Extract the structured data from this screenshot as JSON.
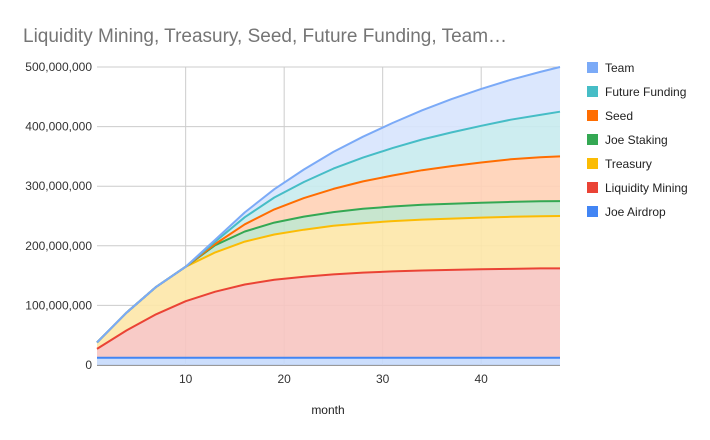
{
  "chart_data": {
    "type": "area",
    "stacked": true,
    "title": "Liquidity Mining, Treasury, Seed, Future Funding, Team…",
    "xlabel": "month",
    "ylabel": "",
    "xlim": [
      1,
      48
    ],
    "ylim": [
      0,
      500000000
    ],
    "x_ticks": [
      10,
      20,
      30,
      40
    ],
    "y_ticks": [
      0,
      100000000,
      200000000,
      300000000,
      400000000,
      500000000
    ],
    "y_tick_labels": [
      "0",
      "100,000,000",
      "200,000,000",
      "300,000,000",
      "400,000,000",
      "500,000,000"
    ],
    "grid": true,
    "legend_position": "right",
    "x": [
      1,
      4,
      7,
      10,
      13,
      16,
      19,
      22,
      25,
      28,
      31,
      34,
      37,
      40,
      43,
      46,
      48
    ],
    "series": [
      {
        "name": "Joe Airdrop",
        "color": "#4285f4",
        "fill": "#c6dafc",
        "values": [
          12000000,
          12000000,
          12000000,
          12000000,
          12000000,
          12000000,
          12000000,
          12000000,
          12000000,
          12000000,
          12000000,
          12000000,
          12000000,
          12000000,
          12000000,
          12000000,
          12000000
        ]
      },
      {
        "name": "Liquidity Mining",
        "color": "#ea4335",
        "fill": "#f7c5c1",
        "values": [
          15000000,
          46000000,
          73000000,
          95000000,
          111000000,
          123000000,
          131000000,
          136000000,
          140000000,
          143000000,
          145000000,
          146500000,
          147500000,
          148500000,
          149300000,
          150000000,
          150000000
        ]
      },
      {
        "name": "Treasury",
        "color": "#fbbc04",
        "fill": "#fde7a8",
        "values": [
          11000000,
          30000000,
          46000000,
          58000000,
          66000000,
          72000000,
          76000000,
          79000000,
          81500000,
          83000000,
          84500000,
          85500000,
          86200000,
          86800000,
          87300000,
          87700000,
          88000000
        ]
      },
      {
        "name": "Joe Staking",
        "color": "#34a853",
        "fill": "#c2e3ca",
        "values": [
          0,
          0,
          0,
          0,
          12000000,
          17000000,
          20000000,
          22000000,
          23000000,
          24000000,
          24500000,
          24800000,
          25000000,
          25000000,
          25000000,
          25000000,
          25000000
        ]
      },
      {
        "name": "Seed",
        "color": "#ff6d01",
        "fill": "#ffd2b6",
        "values": [
          0,
          0,
          0,
          0,
          2000000,
          12000000,
          22000000,
          31000000,
          39000000,
          46000000,
          52000000,
          58000000,
          63000000,
          67500000,
          71500000,
          74000000,
          75000000
        ]
      },
      {
        "name": "Future Funding",
        "color": "#46bdc6",
        "fill": "#c8ebee",
        "values": [
          0,
          0,
          0,
          0,
          4000000,
          12000000,
          20000000,
          27000000,
          34000000,
          40000000,
          46000000,
          51500000,
          56500000,
          61500000,
          66500000,
          71000000,
          75000000
        ]
      },
      {
        "name": "Team",
        "color": "#7baaf7",
        "fill": "#d7e4fd",
        "values": [
          0,
          0,
          0,
          0,
          3000000,
          8000000,
          14000000,
          21000000,
          28000000,
          35000000,
          42000000,
          49000000,
          56000000,
          62000000,
          67000000,
          72000000,
          75000000
        ]
      }
    ],
    "legend_order": [
      "Team",
      "Future Funding",
      "Seed",
      "Joe Staking",
      "Treasury",
      "Liquidity Mining",
      "Joe Airdrop"
    ]
  }
}
